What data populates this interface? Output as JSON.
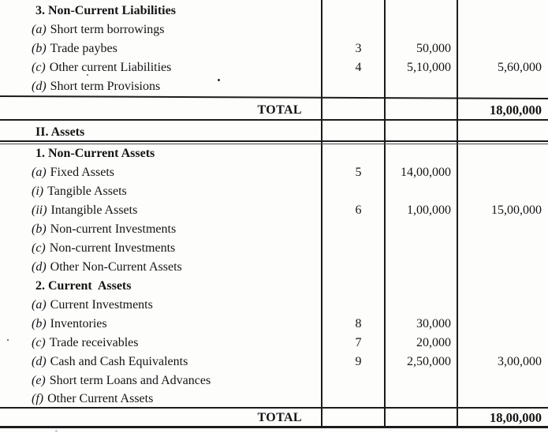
{
  "colors": {
    "paper": "#fdfdfc",
    "ink": "#141414",
    "rule": "#1c1c1c"
  },
  "table": {
    "rows": [
      {
        "type": "section",
        "prefix": "",
        "label": "3. Non-Current Liabilities",
        "note": "",
        "amount1": "",
        "amount2": ""
      },
      {
        "type": "item",
        "prefix": "(a)",
        "label": "Short term borrowings",
        "note": "",
        "amount1": "",
        "amount2": ""
      },
      {
        "type": "item",
        "prefix": "(b)",
        "label": "Trade paybes",
        "note": "3",
        "amount1": "50,000",
        "amount2": ""
      },
      {
        "type": "item",
        "prefix": "(c)",
        "label": "Other current Liabilities",
        "note": "4",
        "amount1": "5,10,000",
        "amount2": "5,60,000"
      },
      {
        "type": "item",
        "prefix": "(d)",
        "label": "Short term Provisions",
        "note": "",
        "amount1": "",
        "amount2": ""
      },
      {
        "type": "total",
        "prefix": "",
        "label": "TOTAL",
        "note": "",
        "amount1": "",
        "amount2": "18,00,000"
      },
      {
        "type": "section",
        "prefix": "",
        "label": "II. Assets",
        "note": "",
        "amount1": "",
        "amount2": ""
      },
      {
        "type": "section",
        "prefix": "",
        "label": "1. Non-Current Assets",
        "note": "",
        "amount1": "",
        "amount2": ""
      },
      {
        "type": "item",
        "prefix": "(a)",
        "label": "Fixed Assets",
        "note": "5",
        "amount1": "14,00,000",
        "amount2": ""
      },
      {
        "type": "item",
        "prefix": "(i)",
        "label": "Tangible Assets",
        "note": "",
        "amount1": "",
        "amount2": ""
      },
      {
        "type": "item",
        "prefix": "(ii)",
        "label": "Intangible Assets",
        "note": "6",
        "amount1": "1,00,000",
        "amount2": "15,00,000"
      },
      {
        "type": "item",
        "prefix": "(b)",
        "label": "Non-current Investments",
        "note": "",
        "amount1": "",
        "amount2": ""
      },
      {
        "type": "item",
        "prefix": "(c)",
        "label": "Non-current Investments",
        "note": "",
        "amount1": "",
        "amount2": ""
      },
      {
        "type": "item",
        "prefix": "(d)",
        "label": "Other Non-Current Assets",
        "note": "",
        "amount1": "",
        "amount2": ""
      },
      {
        "type": "section",
        "prefix": "",
        "label": "2. Current  Assets",
        "note": "",
        "amount1": "",
        "amount2": ""
      },
      {
        "type": "item",
        "prefix": "(a)",
        "label": "Current Investments",
        "note": "",
        "amount1": "",
        "amount2": ""
      },
      {
        "type": "item",
        "prefix": "(b)",
        "label": "Inventories",
        "note": "8",
        "amount1": "30,000",
        "amount2": ""
      },
      {
        "type": "item",
        "prefix": "(c)",
        "label": "Trade receivables",
        "note": "7",
        "amount1": "20,000",
        "amount2": ""
      },
      {
        "type": "item",
        "prefix": "(d)",
        "label": "Cash and Cash Equivalents",
        "note": "9",
        "amount1": "2,50,000",
        "amount2": "3,00,000"
      },
      {
        "type": "item",
        "prefix": "(e)",
        "label": "Short term Loans and Advances",
        "note": "",
        "amount1": "",
        "amount2": ""
      },
      {
        "type": "item",
        "prefix": "(f)",
        "label": "Other Current Assets",
        "note": "",
        "amount1": "",
        "amount2": ""
      },
      {
        "type": "total",
        "prefix": "",
        "label": "TOTAL",
        "note": "",
        "amount1": "",
        "amount2": "18,00,000"
      }
    ]
  }
}
